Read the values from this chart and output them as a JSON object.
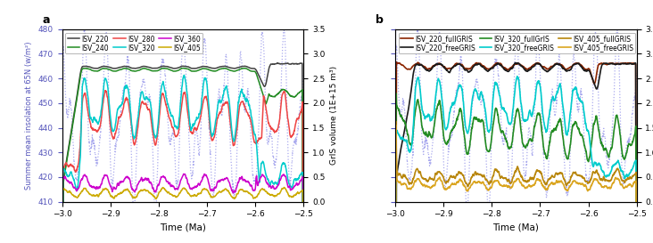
{
  "xlabel": "Time (Ma)",
  "ylabel_left": "Summer mean insolation at 65N (w/m²)",
  "ylabel_right": "GrIS volume (1E+15 m³)",
  "xlim": [
    -3.0,
    -2.5
  ],
  "ylim_left": [
    410,
    480
  ],
  "ylim_right": [
    0.0,
    3.5
  ],
  "xticks": [
    -3.0,
    -2.9,
    -2.8,
    -2.7,
    -2.6,
    -2.5
  ],
  "yticks_left": [
    410,
    420,
    430,
    440,
    450,
    460,
    470,
    480
  ],
  "yticks_right": [
    0.0,
    0.5,
    1.0,
    1.5,
    2.0,
    2.5,
    3.0,
    3.5
  ],
  "insolation_color": "#aaaaee",
  "panel_a": {
    "legend_entries": [
      "ISV_220",
      "ISV_240",
      "ISV_280",
      "ISV_320",
      "ISV_360",
      "ISV_405"
    ],
    "colors": [
      "#404040",
      "#228B22",
      "#ee4444",
      "#00cccc",
      "#cc00cc",
      "#ccaa00"
    ]
  },
  "panel_b": {
    "legend_entries": [
      "ISV_220_fullGRIS",
      "ISV_220_freeGRIS",
      "ISV_320_fullGrIS",
      "ISV_320_freeGRIS",
      "ISV_405_fullGRIS",
      "ISV_405_freeGRIS"
    ],
    "colors": [
      "#8B2500",
      "#1a1a1a",
      "#228B22",
      "#00cccc",
      "#B8860B",
      "#DAA520"
    ]
  }
}
